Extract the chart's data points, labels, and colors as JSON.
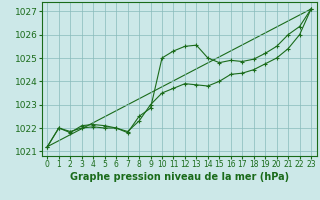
{
  "title": "Graphe pression niveau de la mer (hPa)",
  "background_color": "#cce8e8",
  "grid_color": "#88bbbb",
  "line_color": "#1a6b1a",
  "ylim": [
    1020.8,
    1027.4
  ],
  "xlim": [
    -0.5,
    23.5
  ],
  "yticks": [
    1021,
    1022,
    1023,
    1024,
    1025,
    1026,
    1027
  ],
  "xticks": [
    0,
    1,
    2,
    3,
    4,
    5,
    6,
    7,
    8,
    9,
    10,
    11,
    12,
    13,
    14,
    15,
    16,
    17,
    18,
    19,
    20,
    21,
    22,
    23
  ],
  "series1": [
    1021.2,
    1022.0,
    1021.8,
    1022.1,
    1022.15,
    1022.1,
    1022.0,
    1021.8,
    1022.5,
    1022.85,
    1025.0,
    1025.3,
    1025.5,
    1025.55,
    1025.0,
    1024.8,
    1024.9,
    1024.85,
    1024.95,
    1025.2,
    1025.5,
    1026.0,
    1026.35,
    1027.1
  ],
  "series2": [
    1021.2,
    1022.0,
    1021.85,
    1022.0,
    1022.05,
    1022.0,
    1022.0,
    1021.85,
    1022.3,
    1023.0,
    1023.5,
    1023.7,
    1023.9,
    1023.85,
    1023.8,
    1024.0,
    1024.3,
    1024.35,
    1024.5,
    1024.75,
    1025.0,
    1025.4,
    1026.0,
    1027.1
  ],
  "series3_x": [
    0,
    23
  ],
  "series3_y": [
    1021.2,
    1027.1
  ]
}
